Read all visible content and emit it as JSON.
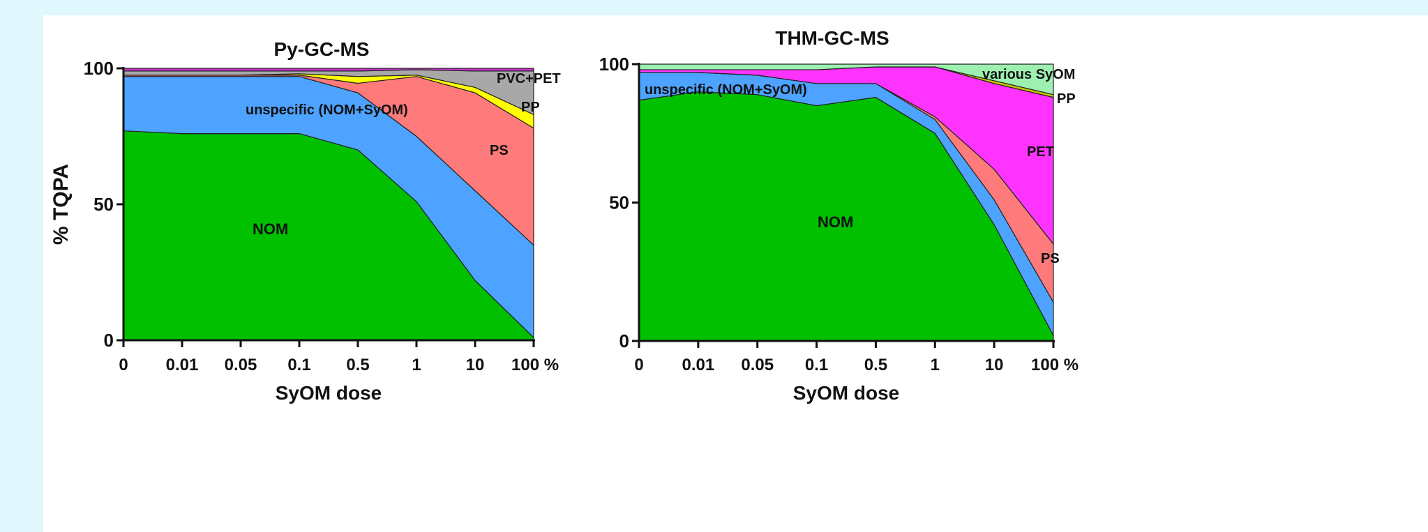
{
  "chart_data": [
    {
      "type": "area",
      "stacked": true,
      "title": "Py-GC-MS",
      "xlabel": "SyOM dose",
      "ylabel": "% TQPA",
      "categories": [
        "0",
        "0.01",
        "0.05",
        "0.1",
        "0.5",
        "1",
        "10",
        "100 %"
      ],
      "ylim": [
        0,
        100
      ],
      "yticks": [
        "0",
        "50",
        "100"
      ],
      "series": [
        {
          "name": "NOM",
          "color": "#00c000",
          "values": [
            77,
            76,
            76,
            76,
            70,
            51,
            22,
            1
          ]
        },
        {
          "name": "unspecific (NOM+SyOM)",
          "color": "#4da3ff",
          "values": [
            20,
            21,
            21,
            21,
            21,
            24,
            33,
            34
          ]
        },
        {
          "name": "PS",
          "color": "#ff7b7b",
          "values": [
            0.5,
            0.5,
            0.5,
            0.5,
            3.5,
            22,
            36,
            43
          ]
        },
        {
          "name": "PP",
          "color": "#ffff00",
          "values": [
            0,
            0,
            0,
            0.5,
            2.5,
            0.5,
            2,
            5
          ]
        },
        {
          "name": "PVC+PET",
          "color": "#a8a8a8",
          "values": [
            1.5,
            1.5,
            1.5,
            1,
            2,
            2,
            6,
            16
          ]
        },
        {
          "name": "",
          "color": "#cc33cc",
          "values": [
            1,
            1,
            1,
            1,
            1,
            0.5,
            1,
            1
          ]
        }
      ]
    },
    {
      "type": "area",
      "stacked": true,
      "title": "THM-GC-MS",
      "xlabel": "SyOM dose",
      "ylabel": "",
      "categories": [
        "0",
        "0.01",
        "0.05",
        "0.1",
        "0.5",
        "1",
        "10",
        "100 %"
      ],
      "ylim": [
        0,
        100
      ],
      "yticks": [
        "0",
        "50",
        "100"
      ],
      "series": [
        {
          "name": "NOM",
          "color": "#00c000",
          "values": [
            87,
            90,
            89,
            85,
            88,
            75,
            42,
            2
          ]
        },
        {
          "name": "unspecific (NOM+SyOM)",
          "color": "#4da3ff",
          "values": [
            10,
            7,
            7,
            8,
            5,
            5,
            9,
            12
          ]
        },
        {
          "name": "PS",
          "color": "#ff7b7b",
          "values": [
            0,
            0,
            0,
            0,
            0,
            1,
            11,
            21
          ]
        },
        {
          "name": "PET",
          "color": "#ff33ff",
          "values": [
            1,
            1,
            2,
            5,
            6,
            18,
            31,
            53
          ]
        },
        {
          "name": "PP",
          "color": "#c8c800",
          "values": [
            0,
            0,
            0,
            0,
            0,
            0,
            1,
            1
          ]
        },
        {
          "name": "various SyOM",
          "color": "#9ef0b0",
          "values": [
            2,
            2,
            2,
            2,
            1,
            1,
            6,
            11
          ]
        }
      ]
    }
  ]
}
